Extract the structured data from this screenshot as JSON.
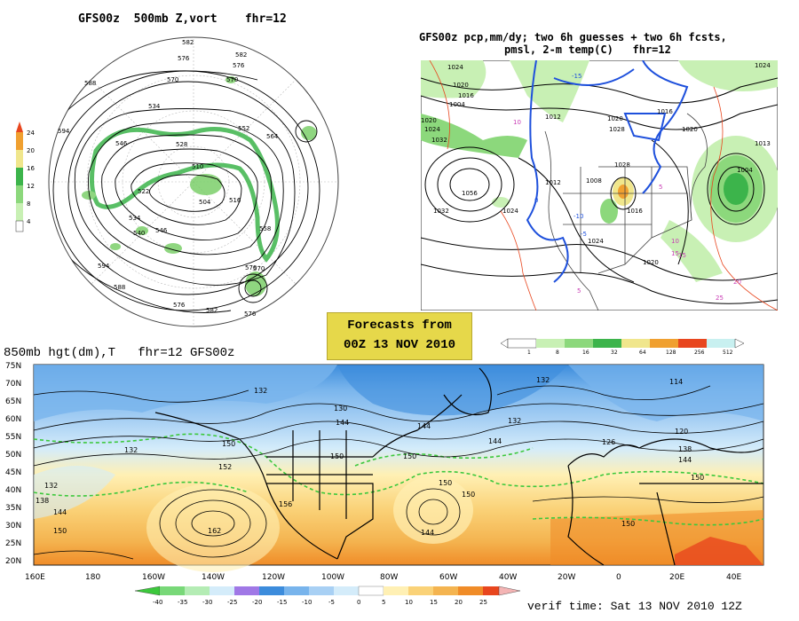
{
  "panels": {
    "upper_left": {
      "title_model": "GFS00z",
      "title_field": "500mb Z,vort",
      "title_fhr": "fhr=12"
    },
    "upper_right": {
      "title_line1": "GFS00z pcp,mm/dy; two 6h guesses + two 6h fcsts,",
      "title_line2": "pmsl, 2-m temp(C)   fhr=12"
    },
    "lower": {
      "title": "850mb hgt(dm),T   fhr=12 GFS00z"
    }
  },
  "banner": {
    "line1": "Forecasts from",
    "line2": "00Z 13 NOV 2010"
  },
  "verif_time": "verif time: Sat 13 NOV 2010 12Z",
  "vort_colorbar": {
    "labels": [
      "24",
      "20",
      "16",
      "12",
      "8",
      "4"
    ]
  },
  "precip_colorbar": {
    "labels": [
      "1",
      "8",
      "16",
      "32",
      "64",
      "128",
      "256",
      "512"
    ],
    "colors": [
      "#ffffff",
      "#c8f0b4",
      "#8cd87c",
      "#3cb44b",
      "#f0e68c",
      "#f0a030",
      "#e8461e",
      "#c8f0f0"
    ]
  },
  "temp_colorbar": {
    "labels": [
      "-40",
      "-35",
      "-30",
      "-25",
      "-20",
      "-15",
      "-10",
      "-5",
      "0",
      "5",
      "10",
      "15",
      "20",
      "25"
    ],
    "colors": [
      "#3cc83c",
      "#78d878",
      "#b4ecb4",
      "#a078e6",
      "#3c8cdc",
      "#78b4ec",
      "#a8d0f4",
      "#d4ecfa",
      "#ffffff",
      "#fff0b4",
      "#fad278",
      "#f4b450",
      "#f08c28",
      "#e8461e",
      "#f4b4b4"
    ]
  },
  "lower_map": {
    "lat_labels": [
      "75N",
      "70N",
      "65N",
      "60N",
      "55N",
      "50N",
      "45N",
      "40N",
      "35N",
      "30N",
      "25N",
      "20N"
    ],
    "lon_labels": [
      "160E",
      "180",
      "160W",
      "140W",
      "120W",
      "100W",
      "80W",
      "60W",
      "40W",
      "20W",
      "0",
      "20E",
      "40E"
    ],
    "contour_labels": [
      {
        "t": "132"
      },
      {
        "t": "132"
      },
      {
        "t": "138"
      },
      {
        "t": "144"
      },
      {
        "t": "150"
      },
      {
        "t": "152"
      },
      {
        "t": "150"
      },
      {
        "t": "144"
      },
      {
        "t": "132"
      },
      {
        "t": "150"
      },
      {
        "t": "156"
      },
      {
        "t": "162"
      },
      {
        "t": "150"
      },
      {
        "t": "144"
      },
      {
        "t": "150"
      },
      {
        "t": "130"
      },
      {
        "t": "144"
      },
      {
        "t": "132"
      },
      {
        "t": "144"
      },
      {
        "t": "150"
      },
      {
        "t": "126"
      },
      {
        "t": "138"
      },
      {
        "t": "144"
      },
      {
        "t": "150"
      },
      {
        "t": "150"
      },
      {
        "t": "114"
      },
      {
        "t": "120"
      },
      {
        "t": "132"
      }
    ]
  },
  "upper_left_map": {
    "height_labels": [
      "582",
      "576",
      "570",
      "582",
      "576",
      "588",
      "570",
      "534",
      "528",
      "546",
      "552",
      "564",
      "510",
      "504",
      "516",
      "522",
      "534",
      "540",
      "546",
      "558",
      "570",
      "594",
      "588",
      "576",
      "576",
      "570",
      "594",
      "582"
    ]
  },
  "upper_right_map": {
    "pressure_labels": [
      "1024",
      "1020",
      "1016",
      "1004",
      "1012",
      "1032",
      "1020",
      "1024",
      "1056",
      "1032",
      "1024",
      "1028",
      "1020",
      "1016",
      "1024",
      "1013",
      "1004",
      "1028",
      "1020",
      "1024",
      "1016",
      "1012",
      "1008",
      "1020"
    ],
    "temp_labels": [
      "5",
      "10",
      "15",
      "-5",
      "-10",
      "-15",
      "0",
      "5",
      "10",
      "15",
      "20",
      "25"
    ]
  }
}
